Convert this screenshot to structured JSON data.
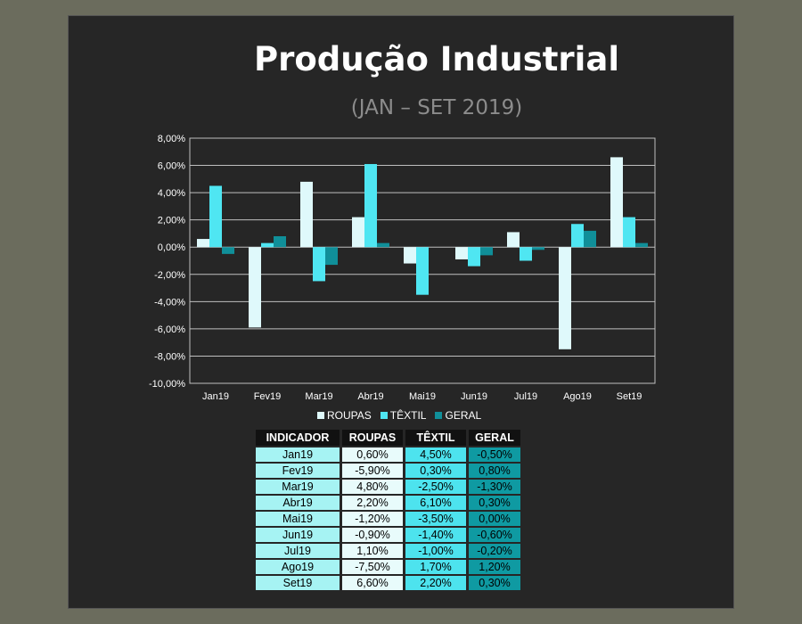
{
  "title": "Produção Industrial",
  "subtitle": "(JAN – SET 2019)",
  "colors": {
    "roupas": "#dff9fb",
    "textil": "#4fe6f2",
    "geral": "#108f99",
    "grid": "#bfbfbf",
    "panel": "#262626"
  },
  "chart_data": {
    "type": "bar",
    "categories": [
      "Jan19",
      "Fev19",
      "Mar19",
      "Abr19",
      "Mai19",
      "Jun19",
      "Jul19",
      "Ago19",
      "Set19"
    ],
    "series": [
      {
        "name": "ROUPAS",
        "values": [
          0.6,
          -5.9,
          4.8,
          2.2,
          -1.2,
          -0.9,
          1.1,
          -7.5,
          6.6
        ]
      },
      {
        "name": "TÊXTIL",
        "values": [
          4.5,
          0.3,
          -2.5,
          6.1,
          -3.5,
          -1.4,
          -1.0,
          1.7,
          2.2
        ]
      },
      {
        "name": "GERAL",
        "values": [
          -0.5,
          0.8,
          -1.3,
          0.3,
          0.0,
          -0.6,
          -0.2,
          1.2,
          0.3
        ]
      }
    ],
    "ylim": [
      -10,
      8
    ],
    "yticks": [
      "8,00%",
      "6,00%",
      "4,00%",
      "2,00%",
      "0,00%",
      "-2,00%",
      "-4,00%",
      "-6,00%",
      "-8,00%",
      "-10,00%"
    ],
    "grid": true,
    "legend_position": "bottom"
  },
  "table": {
    "headers": [
      "INDICADOR",
      "ROUPAS",
      "TÊXTIL",
      "GERAL"
    ],
    "rows": [
      [
        "Jan19",
        "0,60%",
        "4,50%",
        "-0,50%"
      ],
      [
        "Fev19",
        "-5,90%",
        "0,30%",
        "0,80%"
      ],
      [
        "Mar19",
        "4,80%",
        "-2,50%",
        "-1,30%"
      ],
      [
        "Abr19",
        "2,20%",
        "6,10%",
        "0,30%"
      ],
      [
        "Mai19",
        "-1,20%",
        "-3,50%",
        "0,00%"
      ],
      [
        "Jun19",
        "-0,90%",
        "-1,40%",
        "-0,60%"
      ],
      [
        "Jul19",
        "1,10%",
        "-1,00%",
        "-0,20%"
      ],
      [
        "Ago19",
        "-7,50%",
        "1,70%",
        "1,20%"
      ],
      [
        "Set19",
        "6,60%",
        "2,20%",
        "0,30%"
      ]
    ]
  }
}
